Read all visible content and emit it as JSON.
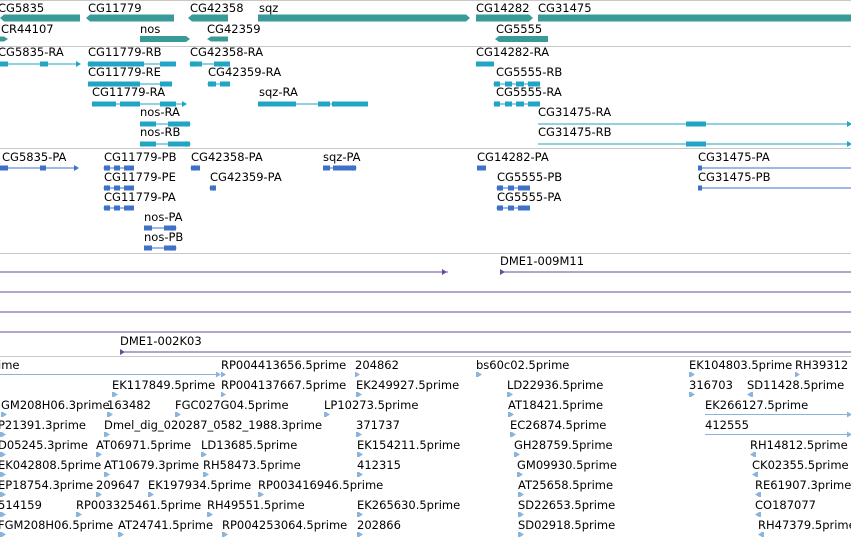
{
  "colors": {
    "gene": "#3a9a98",
    "transcript": "#21a5c4",
    "protein": "#3e72c8",
    "bac": "#6a4aa0",
    "est": "#8bb4dc",
    "separator": "#c8c8c8"
  },
  "tracks": {
    "gene": {
      "features": [
        {
          "label": "CG5835",
          "dir": "none"
        },
        {
          "label": "CR44107",
          "dir": "right"
        },
        {
          "label": "CG11779",
          "dir": "left"
        },
        {
          "label": "nos",
          "dir": "right"
        },
        {
          "label": "CG42358",
          "dir": "left"
        },
        {
          "label": "CG42359",
          "dir": "left"
        },
        {
          "label": "sqz",
          "dir": "right"
        },
        {
          "label": "CG14282",
          "dir": "right"
        },
        {
          "label": "CG5555",
          "dir": "left"
        },
        {
          "label": "CG31475",
          "dir": "right"
        }
      ]
    },
    "transcript": {
      "features": [
        {
          "label": "CG5835-RA"
        },
        {
          "label": "CG11779-RB"
        },
        {
          "label": "CG11779-RE"
        },
        {
          "label": "CG11779-RA"
        },
        {
          "label": "nos-RA"
        },
        {
          "label": "nos-RB"
        },
        {
          "label": "CG42358-RA"
        },
        {
          "label": "CG42359-RA"
        },
        {
          "label": "sqz-RA"
        },
        {
          "label": "CG14282-RA"
        },
        {
          "label": "CG5555-RB"
        },
        {
          "label": "CG5555-RA"
        },
        {
          "label": "CG31475-RA"
        },
        {
          "label": "CG31475-RB"
        }
      ]
    },
    "protein": {
      "features": [
        {
          "label": "CG5835-PA"
        },
        {
          "label": "CG11779-PB"
        },
        {
          "label": "CG11779-PE"
        },
        {
          "label": "CG11779-PA"
        },
        {
          "label": "nos-PA"
        },
        {
          "label": "nos-PB"
        },
        {
          "label": "CG42358-PA"
        },
        {
          "label": "CG42359-PA"
        },
        {
          "label": "sqz-PA"
        },
        {
          "label": "CG14282-PA"
        },
        {
          "label": "CG5555-PB"
        },
        {
          "label": "CG5555-PA"
        },
        {
          "label": "CG31475-PA"
        },
        {
          "label": "CG31475-PB"
        }
      ]
    },
    "bac": {
      "features": [
        {
          "label": "DME1-009M11"
        },
        {
          "label": "DME1-002K03"
        }
      ]
    },
    "est": {
      "features": [
        {
          "label": "ime"
        },
        {
          "label": "RP004413656.5prime"
        },
        {
          "label": "204862"
        },
        {
          "label": "bs60c02.5prime"
        },
        {
          "label": "EK104803.5prime"
        },
        {
          "label": "RH39312"
        },
        {
          "label": "EK117849.5prime"
        },
        {
          "label": "RP004137667.5prime"
        },
        {
          "label": "EK249927.5prime"
        },
        {
          "label": "LD22936.5prime"
        },
        {
          "label": "316703"
        },
        {
          "label": "SD11428.5prime"
        },
        {
          "label": "GM208H06.3prime"
        },
        {
          "label": "163482"
        },
        {
          "label": "FGC027G04.5prime"
        },
        {
          "label": "LP10273.5prime"
        },
        {
          "label": "AT18421.5prime"
        },
        {
          "label": "EK266127.5prime"
        },
        {
          "label": "P21391.3prime"
        },
        {
          "label": "Dmel_dig_020287_0582_1988.3prime"
        },
        {
          "label": "371737"
        },
        {
          "label": "EC26874.5prime"
        },
        {
          "label": "412555"
        },
        {
          "label": "D05245.3prime"
        },
        {
          "label": "AT06971.5prime"
        },
        {
          "label": "LD13685.5prime"
        },
        {
          "label": "EK154211.5prime"
        },
        {
          "label": "GH28759.5prime"
        },
        {
          "label": "RH14812.5prime"
        },
        {
          "label": "EK042808.5prime"
        },
        {
          "label": "AT10679.3prime"
        },
        {
          "label": "RH58473.5prime"
        },
        {
          "label": "412315"
        },
        {
          "label": "GM09930.5prime"
        },
        {
          "label": "CK02355.5prime"
        },
        {
          "label": "EP18754.3prime"
        },
        {
          "label": "209647"
        },
        {
          "label": "EK197934.5prime"
        },
        {
          "label": "RP003416946.5prime"
        },
        {
          "label": "AT25658.5prime"
        },
        {
          "label": "RE61907.3prime"
        },
        {
          "label": "514159"
        },
        {
          "label": "RP003325461.5prime"
        },
        {
          "label": "RH49551.5prime"
        },
        {
          "label": "EK265630.5prime"
        },
        {
          "label": "SD22653.5prime"
        },
        {
          "label": "CO187077"
        },
        {
          "label": "FGM208H06.5prime"
        },
        {
          "label": "AT24741.5prime"
        },
        {
          "label": "RP004253064.5prime"
        },
        {
          "label": "202866"
        },
        {
          "label": "SD02918.5prime"
        },
        {
          "label": "RH47379.5prime"
        }
      ]
    }
  }
}
